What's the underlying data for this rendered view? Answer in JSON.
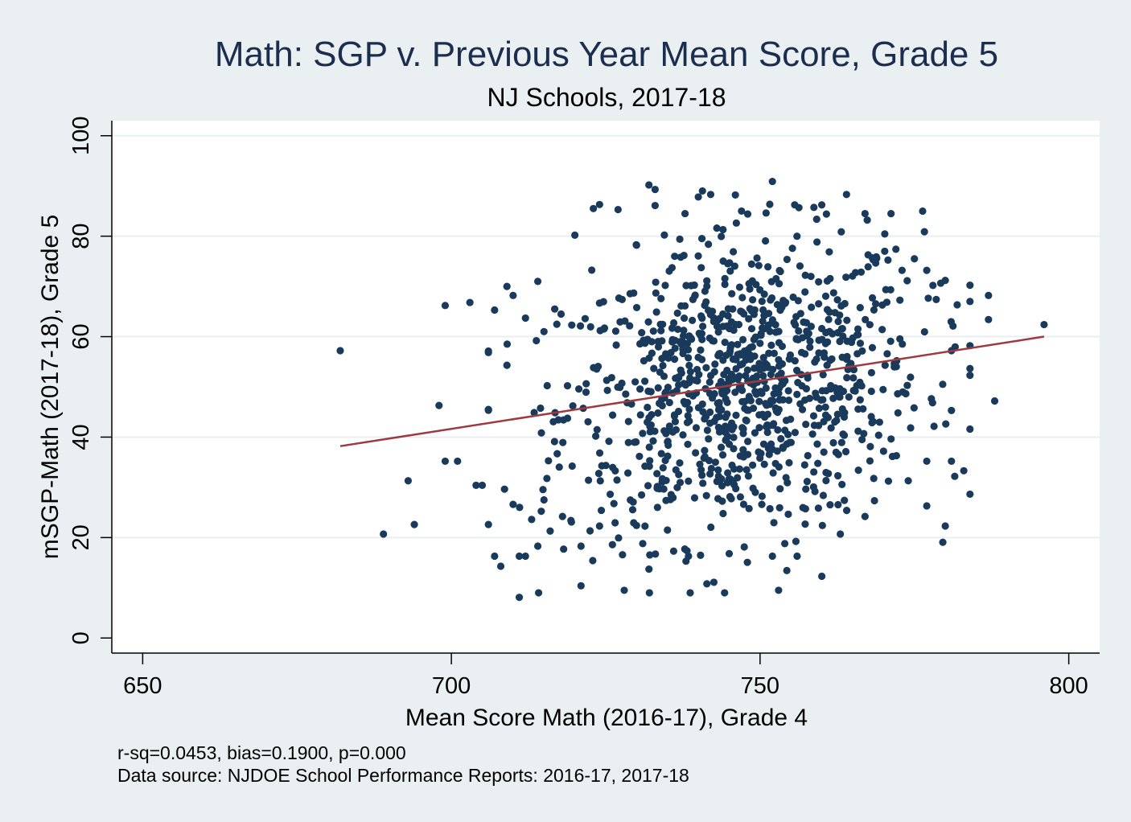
{
  "chart_data": {
    "type": "scatter",
    "title": "Math: SGP v. Previous Year Mean Score, Grade 5",
    "subtitle": "NJ Schools, 2017-18",
    "xlabel": "Mean Score Math (2016-17), Grade 4",
    "ylabel": "mSGP-Math (2017-18), Grade 5",
    "xlim": [
      645,
      805
    ],
    "ylim": [
      -3,
      103
    ],
    "x_ticks": [
      650,
      700,
      750,
      800
    ],
    "y_ticks": [
      0,
      20,
      40,
      60,
      80,
      100
    ],
    "grid": "horizontal",
    "colors": {
      "background": "#eaf0f2",
      "plot_background": "#ffffff",
      "points": "#1a3a5c",
      "fit_line": "#9e3a3f",
      "title": "#1c2e4f"
    },
    "fit_line": {
      "x": [
        682,
        796
      ],
      "y": [
        38.2,
        60.0
      ]
    },
    "notes": [
      "r-sq=0.0453, bias=0.1900, p=0.000",
      "Data source: NJDOE School Performance Reports: 2016-17, 2017-18"
    ],
    "points": [
      [
        682,
        57.2
      ],
      [
        689,
        20.7
      ],
      [
        693,
        31.3
      ],
      [
        694,
        22.6
      ],
      [
        698,
        46.3
      ],
      [
        699,
        66.2
      ],
      [
        699,
        35.2
      ],
      [
        701,
        35.2
      ],
      [
        703,
        66.8
      ],
      [
        704,
        30.4
      ],
      [
        705,
        30.4
      ],
      [
        706,
        22.6
      ],
      [
        707,
        65.3
      ],
      [
        707,
        16.3
      ],
      [
        708,
        14.3
      ],
      [
        709,
        70.0
      ],
      [
        709,
        54.3
      ],
      [
        710,
        68.2
      ],
      [
        710,
        26.6
      ],
      [
        711,
        8.1
      ],
      [
        711,
        16.3
      ],
      [
        712,
        63.7
      ],
      [
        712,
        16.3
      ],
      [
        714,
        71.0
      ],
      [
        714,
        18.3
      ],
      [
        715,
        61.0
      ],
      [
        715,
        27.5
      ],
      [
        716,
        21.3
      ],
      [
        720,
        80.2
      ],
      [
        721,
        10.4
      ],
      [
        723,
        85.5
      ],
      [
        724,
        86.3
      ],
      [
        727,
        85.3
      ],
      [
        728,
        9.5
      ],
      [
        730,
        78.2
      ],
      [
        732,
        90.2
      ],
      [
        733,
        89.3
      ],
      [
        733,
        86.1
      ],
      [
        737,
        79.4
      ],
      [
        740,
        87.8
      ],
      [
        742,
        88.3
      ],
      [
        743,
        81.6
      ],
      [
        744,
        81.3
      ],
      [
        746,
        88.2
      ],
      [
        747,
        85.0
      ],
      [
        748,
        84.4
      ],
      [
        752,
        90.9
      ],
      [
        764,
        88.3
      ],
      [
        767,
        84.5
      ],
      [
        772,
        77.4
      ],
      [
        773,
        73.2
      ],
      [
        775,
        75.5
      ],
      [
        777,
        73.2
      ],
      [
        778,
        70.2
      ],
      [
        780,
        71.2
      ],
      [
        781,
        57.2
      ],
      [
        784,
        67.0
      ],
      [
        784,
        58.2
      ],
      [
        784,
        52.3
      ],
      [
        784,
        41.6
      ],
      [
        787,
        68.2
      ],
      [
        787,
        63.4
      ],
      [
        788,
        47.2
      ],
      [
        796,
        62.4
      ],
      [
        781,
        45.3
      ],
      [
        781,
        35.2
      ],
      [
        780,
        22.3
      ],
      [
        783,
        33.3
      ],
      [
        777,
        35.2
      ],
      [
        777,
        26.3
      ],
      [
        774,
        31.3
      ],
      [
        770,
        37.2
      ],
      [
        760,
        12.3
      ],
      [
        753,
        9.5
      ],
      [
        754,
        18.8
      ],
      [
        752,
        16.3
      ],
      [
        756,
        16.3
      ],
      [
        745,
        16.8
      ],
      [
        738,
        15.3
      ],
      [
        731,
        18.8
      ],
      [
        736,
        17.3
      ],
      [
        735,
        21.5
      ],
      [
        713,
        23.6
      ],
      [
        718,
        24.2
      ],
      [
        721,
        18.3
      ],
      [
        724,
        22.3
      ],
      [
        763,
        20.7
      ],
      [
        767,
        24.2
      ]
    ]
  }
}
